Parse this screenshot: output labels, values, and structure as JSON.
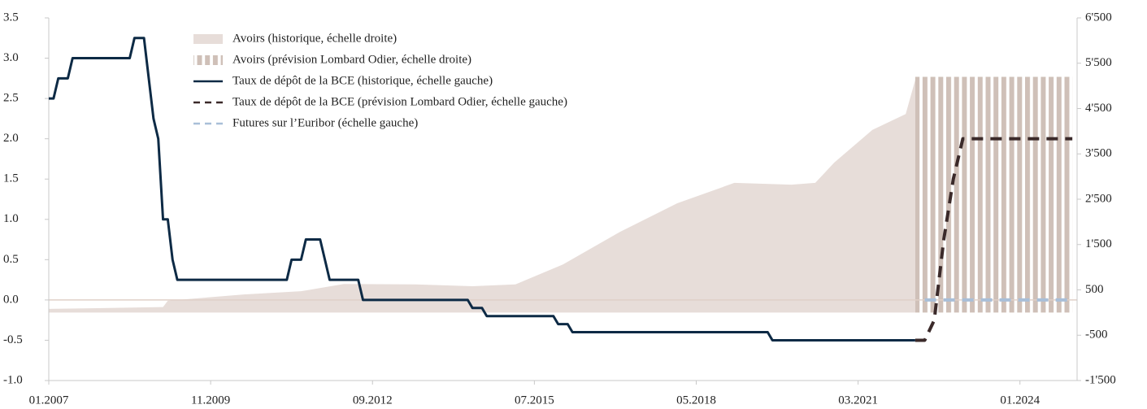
{
  "chart_data": {
    "type": "line",
    "xlim": [
      "2007-01",
      "2024-12"
    ],
    "xticks": [
      {
        "value": "2007-01",
        "label": "01.2007"
      },
      {
        "value": "2009-11",
        "label": "11.2009"
      },
      {
        "value": "2012-09",
        "label": "09.2012"
      },
      {
        "value": "2015-07",
        "label": "07.2015"
      },
      {
        "value": "2018-05",
        "label": "05.2018"
      },
      {
        "value": "2021-03",
        "label": "03.2021"
      },
      {
        "value": "2024-01",
        "label": "01.2024"
      }
    ],
    "ylim": [
      -1,
      3.5
    ],
    "yticks": [
      3.5,
      {
        "value": 3,
        "label": "3.0"
      },
      2.5,
      {
        "value": 2,
        "label": "2.0"
      },
      1.5,
      {
        "value": 1,
        "label": "1.0"
      },
      0.5,
      {
        "value": 0,
        "label": "0.0"
      },
      -0.5,
      {
        "value": -1,
        "label": "-1.0"
      }
    ],
    "y2lim": [
      -1500,
      6500
    ],
    "y2ticks": [
      {
        "value": 6500,
        "label": "6'500"
      },
      {
        "value": 5500,
        "label": "5'500"
      },
      {
        "value": 4500,
        "label": "4'500"
      },
      {
        "value": 3500,
        "label": "3'500"
      },
      {
        "value": 2500,
        "label": "2'500"
      },
      {
        "value": 1500,
        "label": "1'500"
      },
      500,
      -500,
      {
        "value": -1500,
        "label": "-1'500"
      }
    ],
    "series": [
      {
        "name": "Avoirs (historique, échelle droite)",
        "style": "area",
        "axis": "y2",
        "color": "#e7ddd9",
        "x": [
          "2007-01",
          "2009-01",
          "2009-02",
          "2010-06",
          "2011-06",
          "2012-03",
          "2013-06",
          "2014-06",
          "2015-03",
          "2016-01",
          "2017-01",
          "2018-01",
          "2019-01",
          "2020-01",
          "2020-06",
          "2020-10",
          "2021-06",
          "2022-01",
          "2022-03"
        ],
        "values": [
          80,
          120,
          260,
          400,
          470,
          630,
          620,
          580,
          620,
          1060,
          1780,
          2410,
          2860,
          2820,
          2860,
          3310,
          4030,
          4380,
          5130
        ]
      },
      {
        "name": "Avoirs (prévision Lombard Odier, échelle droite)",
        "style": "striped-area",
        "axis": "y2",
        "color": "#cfc0b8",
        "x": [
          "2022-03",
          "2024-12"
        ],
        "values": [
          5200,
          5200
        ]
      },
      {
        "name": "Taux de dépôt de la BCE (historique, échelle gauche)",
        "style": "solid",
        "color": "#0d2a45",
        "x": [
          "2007-01",
          "2007-02",
          "2007-03",
          "2007-05",
          "2007-06",
          "2008-06",
          "2008-07",
          "2008-09",
          "2008-10",
          "2008-11",
          "2008-12",
          "2009-01",
          "2009-02",
          "2009-03",
          "2009-04",
          "2011-03",
          "2011-04",
          "2011-06",
          "2011-07",
          "2011-10",
          "2011-11",
          "2011-12",
          "2012-06",
          "2012-07",
          "2014-05",
          "2014-06",
          "2014-08",
          "2014-09",
          "2015-11",
          "2015-12",
          "2016-02",
          "2016-03",
          "2019-08",
          "2019-09",
          "2022-03"
        ],
        "values": [
          2.5,
          2.5,
          2.75,
          2.75,
          3.0,
          3.0,
          3.25,
          3.25,
          2.75,
          2.25,
          2.0,
          1.0,
          1.0,
          0.5,
          0.25,
          0.25,
          0.5,
          0.5,
          0.75,
          0.75,
          0.5,
          0.25,
          0.25,
          0.0,
          0.0,
          -0.1,
          -0.1,
          -0.2,
          -0.2,
          -0.3,
          -0.3,
          -0.4,
          -0.4,
          -0.5,
          -0.5
        ]
      },
      {
        "name": "Taux de dépôt de la BCE (prévision Lombard Odier, échelle gauche)",
        "style": "dashed",
        "color": "#3b2a2a",
        "x": [
          "2022-03",
          "2022-05",
          "2022-07",
          "2022-09",
          "2022-11",
          "2023-01",
          "2024-12"
        ],
        "values": [
          -0.5,
          -0.5,
          -0.25,
          0.75,
          1.5,
          2.0,
          2.0
        ]
      },
      {
        "name": "Futures sur l’Euribor (échelle gauche)",
        "style": "dashed-light",
        "color": "#a9bfd8",
        "x": [
          "2022-05",
          "2024-12"
        ],
        "values": [
          0.0,
          0.0
        ]
      }
    ]
  }
}
